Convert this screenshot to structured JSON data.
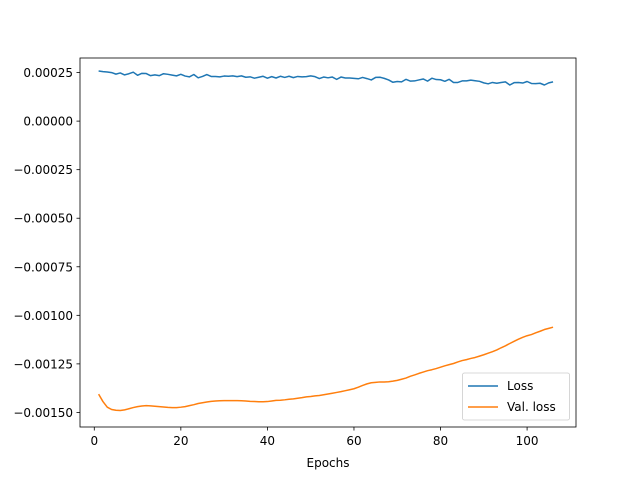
{
  "chart_data": {
    "type": "line",
    "title": "",
    "xlabel": "Epochs",
    "ylabel": "",
    "xlim": [
      -3.3,
      111.3
    ],
    "ylim": [
      -0.001575,
      0.000325
    ],
    "x_ticks": [
      0,
      20,
      40,
      60,
      80,
      100
    ],
    "x_tick_labels": [
      "0",
      "20",
      "40",
      "60",
      "80",
      "100"
    ],
    "y_ticks": [
      0.00025,
      0.0,
      -0.00025,
      -0.0005,
      -0.00075,
      -0.001,
      -0.00125,
      -0.0015
    ],
    "y_tick_labels": [
      "0.00025",
      "0.00000",
      "−0.00025",
      "−0.00050",
      "−0.00075",
      "−0.00100",
      "−0.00125",
      "−0.00150"
    ],
    "grid": false,
    "legend_position": "lower-right",
    "series": [
      {
        "name": "Loss",
        "color": "#1f77b4",
        "x": [
          1,
          2,
          3,
          4,
          5,
          6,
          7,
          8,
          9,
          10,
          11,
          12,
          13,
          14,
          15,
          16,
          17,
          18,
          19,
          20,
          21,
          22,
          23,
          24,
          25,
          26,
          27,
          28,
          29,
          30,
          31,
          32,
          33,
          34,
          35,
          36,
          37,
          38,
          39,
          40,
          41,
          42,
          43,
          44,
          45,
          46,
          47,
          48,
          49,
          50,
          51,
          52,
          53,
          54,
          55,
          56,
          57,
          58,
          59,
          60,
          61,
          62,
          63,
          64,
          65,
          66,
          67,
          68,
          69,
          70,
          71,
          72,
          73,
          74,
          75,
          76,
          77,
          78,
          79,
          80,
          81,
          82,
          83,
          84,
          85,
          86,
          87,
          88,
          89,
          90,
          91,
          92,
          93,
          94,
          95,
          96,
          97,
          98,
          99,
          100,
          101,
          102,
          103,
          104,
          105,
          106
        ],
        "y": [
          0.000258,
          0.000255,
          0.000253,
          0.00025,
          0.000242,
          0.000248,
          0.000238,
          0.000244,
          0.000252,
          0.000236,
          0.000246,
          0.000245,
          0.000234,
          0.000238,
          0.000234,
          0.000244,
          0.000241,
          0.000237,
          0.000233,
          0.000241,
          0.000232,
          0.000228,
          0.00024,
          0.000223,
          0.00023,
          0.00024,
          0.00023,
          0.00023,
          0.000228,
          0.000232,
          0.000231,
          0.000233,
          0.000229,
          0.000233,
          0.000226,
          0.000228,
          0.000221,
          0.000226,
          0.000231,
          0.000221,
          0.000229,
          0.000222,
          0.000231,
          0.000225,
          0.000231,
          0.000224,
          0.00023,
          0.000228,
          0.000229,
          0.000233,
          0.000229,
          0.000219,
          0.000227,
          0.000223,
          0.000227,
          0.000215,
          0.000227,
          0.000222,
          0.000222,
          0.00022,
          0.000218,
          0.000225,
          0.000219,
          0.000212,
          0.000225,
          0.000226,
          0.00022,
          0.000212,
          0.0002,
          0.000204,
          0.000202,
          0.000215,
          0.000206,
          0.000207,
          0.000212,
          0.000217,
          0.000206,
          0.000221,
          0.000214,
          0.000213,
          0.000205,
          0.000215,
          0.000199,
          0.000199,
          0.000207,
          0.000207,
          0.000211,
          0.000208,
          0.000205,
          0.000197,
          0.000192,
          0.000199,
          0.000195,
          0.000199,
          0.000202,
          0.000186,
          0.000198,
          0.000199,
          0.000196,
          0.000204,
          0.000194,
          0.000193,
          0.000195,
          0.000186,
          0.000197,
          0.000202
        ]
      },
      {
        "name": "Val. loss",
        "color": "#ff7f0e",
        "x": [
          1,
          2,
          3,
          4,
          5,
          6,
          7,
          8,
          9,
          10,
          11,
          12,
          13,
          14,
          15,
          16,
          17,
          18,
          19,
          20,
          21,
          22,
          23,
          24,
          25,
          26,
          27,
          28,
          29,
          30,
          31,
          32,
          33,
          34,
          35,
          36,
          37,
          38,
          39,
          40,
          41,
          42,
          43,
          44,
          45,
          46,
          47,
          48,
          49,
          50,
          51,
          52,
          53,
          54,
          55,
          56,
          57,
          58,
          59,
          60,
          61,
          62,
          63,
          64,
          65,
          66,
          67,
          68,
          69,
          70,
          71,
          72,
          73,
          74,
          75,
          76,
          77,
          78,
          79,
          80,
          81,
          82,
          83,
          84,
          85,
          86,
          87,
          88,
          89,
          90,
          91,
          92,
          93,
          94,
          95,
          96,
          97,
          98,
          99,
          100,
          101,
          102,
          103,
          104,
          105,
          106
        ],
        "y": [
          -0.001406,
          -0.001444,
          -0.001473,
          -0.001485,
          -0.001489,
          -0.00149,
          -0.001487,
          -0.001481,
          -0.001475,
          -0.00147,
          -0.001467,
          -0.001465,
          -0.001466,
          -0.001468,
          -0.00147,
          -0.001472,
          -0.001474,
          -0.001475,
          -0.001475,
          -0.001473,
          -0.00147,
          -0.001465,
          -0.00146,
          -0.001454,
          -0.00145,
          -0.001446,
          -0.001443,
          -0.001441,
          -0.00144,
          -0.001439,
          -0.001439,
          -0.001439,
          -0.001439,
          -0.00144,
          -0.001441,
          -0.001443,
          -0.001444,
          -0.001445,
          -0.001445,
          -0.001444,
          -0.001441,
          -0.001438,
          -0.001437,
          -0.001435,
          -0.001432,
          -0.00143,
          -0.001427,
          -0.001424,
          -0.00142,
          -0.001418,
          -0.001415,
          -0.001413,
          -0.001409,
          -0.001405,
          -0.001401,
          -0.001397,
          -0.001393,
          -0.001388,
          -0.001383,
          -0.001378,
          -0.00137,
          -0.001361,
          -0.001353,
          -0.001347,
          -0.001345,
          -0.001343,
          -0.001343,
          -0.001342,
          -0.001339,
          -0.001335,
          -0.001329,
          -0.001323,
          -0.001314,
          -0.001307,
          -0.001299,
          -0.001292,
          -0.001285,
          -0.00128,
          -0.001274,
          -0.001267,
          -0.00126,
          -0.001254,
          -0.001248,
          -0.00124,
          -0.001233,
          -0.001228,
          -0.001222,
          -0.001217,
          -0.00121,
          -0.001203,
          -0.001195,
          -0.001187,
          -0.001178,
          -0.001167,
          -0.001157,
          -0.001145,
          -0.001134,
          -0.001123,
          -0.001113,
          -0.001105,
          -0.001099,
          -0.00109,
          -0.001082,
          -0.001073,
          -0.001067,
          -0.001061
        ]
      }
    ]
  }
}
